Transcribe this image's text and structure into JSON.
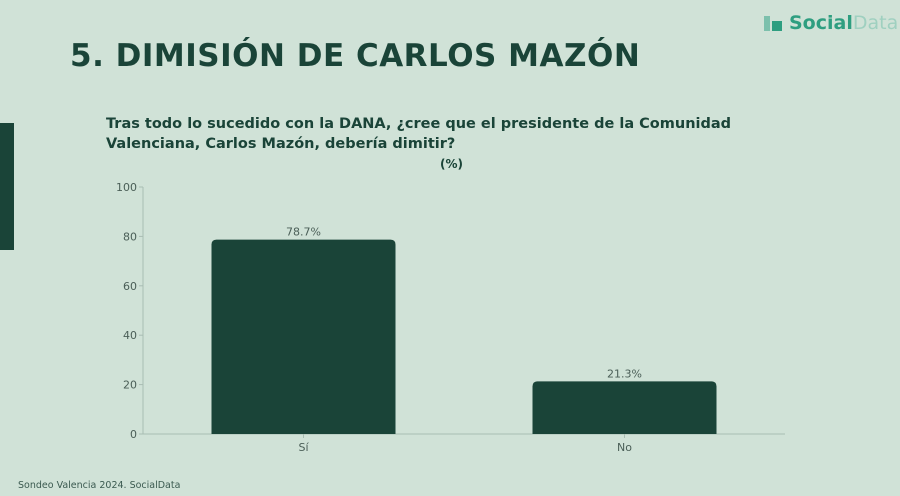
{
  "header": {
    "title": "5. DIMISIÓN DE CARLOS MAZÓN",
    "logo": {
      "part1": "Social",
      "part2": "Data"
    }
  },
  "footer": "Sondeo Valencia 2024. SocialData",
  "colors": {
    "bar": "#1a4438",
    "background": "#d0e2d7"
  },
  "chart_data": {
    "type": "bar",
    "title": "Tras todo lo sucedido con la DANA, ¿cree que el presidente de la Comunidad Valenciana, Carlos Mazón, debería dimitir?",
    "subtitle": "(%)",
    "categories": [
      "Sí",
      "No"
    ],
    "values": [
      78.7,
      21.3
    ],
    "data_labels": [
      "78.7%",
      "21.3%"
    ],
    "ylim": [
      0,
      100
    ],
    "yticks": [
      0,
      20,
      40,
      60,
      80,
      100
    ],
    "grid": false
  }
}
